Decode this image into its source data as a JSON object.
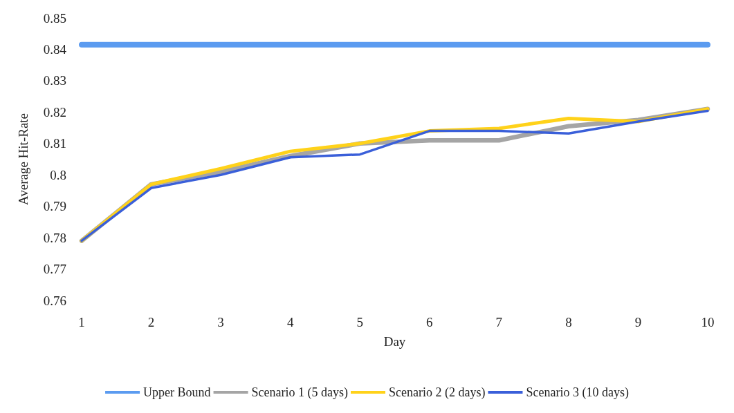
{
  "chart_data": {
    "type": "line",
    "xlabel": "Day",
    "ylabel": "Average Hit-Rate",
    "categories": [
      "1",
      "2",
      "3",
      "4",
      "5",
      "6",
      "7",
      "8",
      "9",
      "10"
    ],
    "ylim": [
      0.76,
      0.85
    ],
    "yticks": [
      0.76,
      0.77,
      0.78,
      0.79,
      0.8,
      0.81,
      0.82,
      0.83,
      0.84,
      0.85
    ],
    "grid": false,
    "legend": "bottom",
    "marker": "none",
    "line_style": "solid",
    "series": [
      {
        "name": "Upper Bound",
        "color": "#5b9bf0",
        "values": [
          0.8415,
          0.8415,
          0.8415,
          0.8415,
          0.8415,
          0.8415,
          0.8415,
          0.8415,
          0.8415,
          0.8415
        ]
      },
      {
        "name": "Scenario 1 (5 days)",
        "color": "#a5a5a5",
        "values": [
          0.779,
          0.797,
          0.801,
          0.806,
          0.81,
          0.811,
          0.811,
          0.8155,
          0.8175,
          0.821
        ]
      },
      {
        "name": "Scenario 2 (2 days)",
        "color": "#ffd21a",
        "values": [
          0.779,
          0.797,
          0.802,
          0.8075,
          0.81,
          0.814,
          0.8148,
          0.818,
          0.817,
          0.821
        ]
      },
      {
        "name": "Scenario 3 (10 days)",
        "color": "#3a5fd9",
        "values": [
          0.779,
          0.7958,
          0.8,
          0.8056,
          0.8065,
          0.814,
          0.814,
          0.8132,
          0.817,
          0.8204
        ]
      }
    ]
  }
}
